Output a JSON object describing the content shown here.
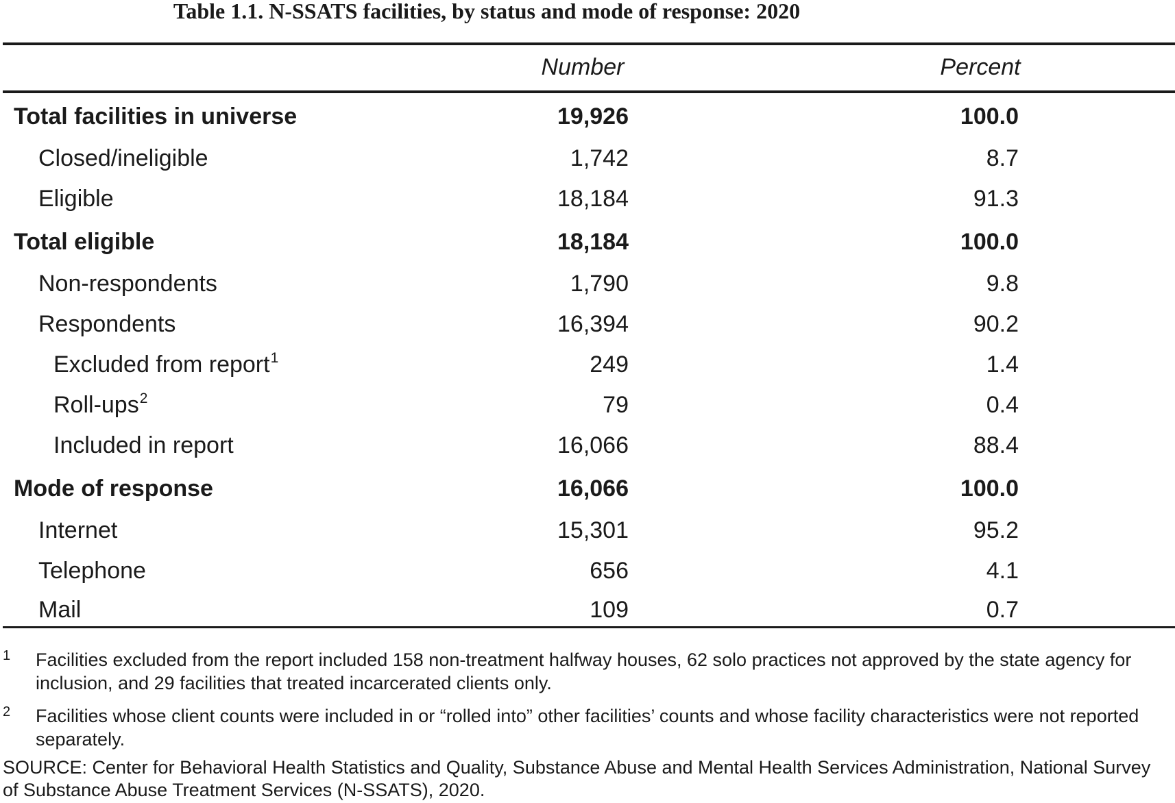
{
  "table": {
    "title": "Table 1.1. N-SSATS facilities, by status and mode of response: 2020",
    "columns": {
      "number": "Number",
      "percent": "Percent"
    },
    "rows": [
      {
        "label": "Total facilities in universe",
        "number": "19,926",
        "percent": "100.0",
        "bold": true,
        "level": 0,
        "sup": ""
      },
      {
        "label": "Closed/ineligible",
        "number": "1,742",
        "percent": "8.7",
        "bold": false,
        "level": 1,
        "sup": ""
      },
      {
        "label": "Eligible",
        "number": "18,184",
        "percent": "91.3",
        "bold": false,
        "level": 1,
        "sup": ""
      },
      {
        "label": "Total eligible",
        "number": "18,184",
        "percent": "100.0",
        "bold": true,
        "level": 0,
        "sup": ""
      },
      {
        "label": "Non-respondents",
        "number": "1,790",
        "percent": "9.8",
        "bold": false,
        "level": 1,
        "sup": ""
      },
      {
        "label": "Respondents",
        "number": "16,394",
        "percent": "90.2",
        "bold": false,
        "level": 1,
        "sup": ""
      },
      {
        "label": "Excluded from report",
        "number": "249",
        "percent": "1.4",
        "bold": false,
        "level": 2,
        "sup": "1"
      },
      {
        "label": "Roll-ups",
        "number": "79",
        "percent": "0.4",
        "bold": false,
        "level": 2,
        "sup": "2"
      },
      {
        "label": "Included in report",
        "number": "16,066",
        "percent": "88.4",
        "bold": false,
        "level": 2,
        "sup": ""
      },
      {
        "label": "Mode of response",
        "number": "16,066",
        "percent": "100.0",
        "bold": true,
        "level": 0,
        "sup": ""
      },
      {
        "label": "Internet",
        "number": "15,301",
        "percent": "95.2",
        "bold": false,
        "level": 1,
        "sup": ""
      },
      {
        "label": "Telephone",
        "number": "656",
        "percent": "4.1",
        "bold": false,
        "level": 1,
        "sup": ""
      },
      {
        "label": "Mail",
        "number": "109",
        "percent": "0.7",
        "bold": false,
        "level": 1,
        "sup": ""
      }
    ]
  },
  "footnotes": [
    {
      "mark": "1",
      "text": "Facilities excluded from the report included 158 non-treatment halfway houses, 62 solo practices not approved by the state agency for inclusion, and 29 facilities that treated incarcerated clients only."
    },
    {
      "mark": "2",
      "text": "Facilities whose client counts were included in or “rolled into” other facilities’ counts and whose facility characteristics were not reported separately."
    }
  ],
  "source": "SOURCE: Center for Behavioral Health Statistics and Quality, Substance Abuse and Mental Health Services Administration, National Survey of Substance Abuse Treatment Services (N-SSATS), 2020."
}
